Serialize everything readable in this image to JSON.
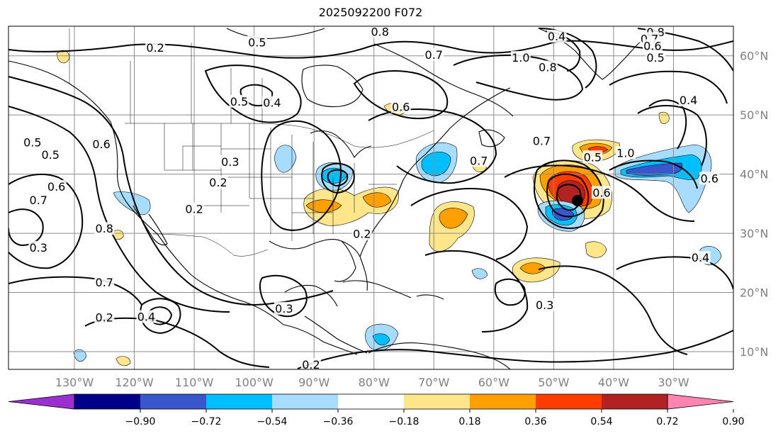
{
  "title": "2025092200 F072",
  "map": {
    "lon_range": [
      -141,
      -20
    ],
    "lat_range": [
      7,
      65
    ],
    "projection": "equirectangular",
    "grid": true
  },
  "axes": {
    "lon_ticks": [
      "130°W",
      "120°W",
      "110°W",
      "100°W",
      "90°W",
      "80°W",
      "70°W",
      "60°W",
      "50°W",
      "40°W",
      "30°W"
    ],
    "lon_tick_values": [
      -130,
      -120,
      -110,
      -100,
      -90,
      -80,
      -70,
      -60,
      -50,
      -40,
      -30
    ],
    "lat_ticks": [
      "10°N",
      "20°N",
      "30°N",
      "40°N",
      "50°N",
      "60°N"
    ],
    "lat_tick_values": [
      10,
      20,
      30,
      40,
      50,
      60
    ]
  },
  "colorbar": {
    "levels": [
      -0.9,
      -0.72,
      -0.54,
      -0.36,
      -0.18,
      0.18,
      0.36,
      0.54,
      0.72,
      0.9
    ],
    "labels": [
      "−0.90",
      "−0.72",
      "−0.54",
      "−0.36",
      "−0.18",
      "0.18",
      "0.36",
      "0.54",
      "0.72",
      "0.90"
    ],
    "colors": [
      "#9b30d0",
      "#00008b",
      "#3a56cc",
      "#00bfff",
      "#a8dcff",
      "#ffffff",
      "#ffe68a",
      "#ff9f00",
      "#ff3c00",
      "#b22222",
      "#ff85b0"
    ],
    "extend": "both"
  },
  "contour_labels": [
    {
      "text": "0.2",
      "lon": -116.5,
      "lat": 61.3
    },
    {
      "text": "0.5",
      "lon": -99.5,
      "lat": 62.2
    },
    {
      "text": "0.8",
      "lon": -79,
      "lat": 64.0
    },
    {
      "text": "0.7",
      "lon": -70,
      "lat": 60.1
    },
    {
      "text": "1.0",
      "lon": -55.5,
      "lat": 59.6
    },
    {
      "text": "0.8",
      "lon": -51,
      "lat": 58.0
    },
    {
      "text": "0.4",
      "lon": -49.5,
      "lat": 63.2
    },
    {
      "text": "0.8",
      "lon": -33,
      "lat": 63.9
    },
    {
      "text": "0.7",
      "lon": -34,
      "lat": 62.8
    },
    {
      "text": "0.6",
      "lon": -33.5,
      "lat": 61.6
    },
    {
      "text": "0.5",
      "lon": -33,
      "lat": 59.6
    },
    {
      "text": "0.4",
      "lon": -27.5,
      "lat": 52.4
    },
    {
      "text": "0.5",
      "lon": -102.5,
      "lat": 52.2
    },
    {
      "text": "0.4",
      "lon": -97,
      "lat": 52.0
    },
    {
      "text": "0.6",
      "lon": -75.5,
      "lat": 51.3
    },
    {
      "text": "0.5",
      "lon": -137,
      "lat": 45.3
    },
    {
      "text": "0.5",
      "lon": -134,
      "lat": 43.2
    },
    {
      "text": "0.6",
      "lon": -125.5,
      "lat": 45.0
    },
    {
      "text": "0.7",
      "lon": -52,
      "lat": 45.5
    },
    {
      "text": "0.7",
      "lon": -62.5,
      "lat": 42.2
    },
    {
      "text": "0.5",
      "lon": -43.5,
      "lat": 42.8
    },
    {
      "text": "1.0",
      "lon": -38,
      "lat": 43.5
    },
    {
      "text": "0.3",
      "lon": -104,
      "lat": 42.0
    },
    {
      "text": "0.2",
      "lon": -106,
      "lat": 38.5
    },
    {
      "text": "0.2",
      "lon": -110,
      "lat": 34.0
    },
    {
      "text": "0.7",
      "lon": -136,
      "lat": 35.5
    },
    {
      "text": "0.6",
      "lon": -133,
      "lat": 37.8
    },
    {
      "text": "0.8",
      "lon": -125,
      "lat": 30.7
    },
    {
      "text": "0.3",
      "lon": -136,
      "lat": 27.5
    },
    {
      "text": "0.7",
      "lon": -125,
      "lat": 21.6
    },
    {
      "text": "0.2",
      "lon": -125,
      "lat": 15.7
    },
    {
      "text": "0.4",
      "lon": -118,
      "lat": 15.8
    },
    {
      "text": "0.2",
      "lon": -82,
      "lat": 29.8
    },
    {
      "text": "0.6",
      "lon": -42,
      "lat": 36.8
    },
    {
      "text": "0.6",
      "lon": -24,
      "lat": 39.2
    },
    {
      "text": "0.3",
      "lon": -51.5,
      "lat": 17.8
    },
    {
      "text": "0.4",
      "lon": -25.5,
      "lat": 25.8
    },
    {
      "text": "0.3",
      "lon": -95,
      "lat": 17.2
    },
    {
      "text": "0.2",
      "lon": -90.5,
      "lat": 7.7
    }
  ]
}
